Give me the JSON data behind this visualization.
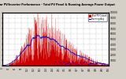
{
  "title": "Solar PV/Inverter Performance - Total PV Panel & Running Average Power Output",
  "bg_color": "#d4d0c8",
  "plot_bg": "#ffffff",
  "bar_color": "#cc0000",
  "avg_color": "#0000cc",
  "ylim": [
    0,
    10000
  ],
  "legend_bar": "Total PV Output",
  "legend_avg": "Running Avg",
  "ytick_labels": [
    "10000",
    "9000",
    "8000",
    "7000",
    "6000",
    "5000",
    "4000",
    "3000",
    "2000",
    "1000",
    ""
  ],
  "ytick_vals": [
    10000,
    9000,
    8000,
    7000,
    6000,
    5000,
    4000,
    3000,
    2000,
    1000,
    0
  ]
}
